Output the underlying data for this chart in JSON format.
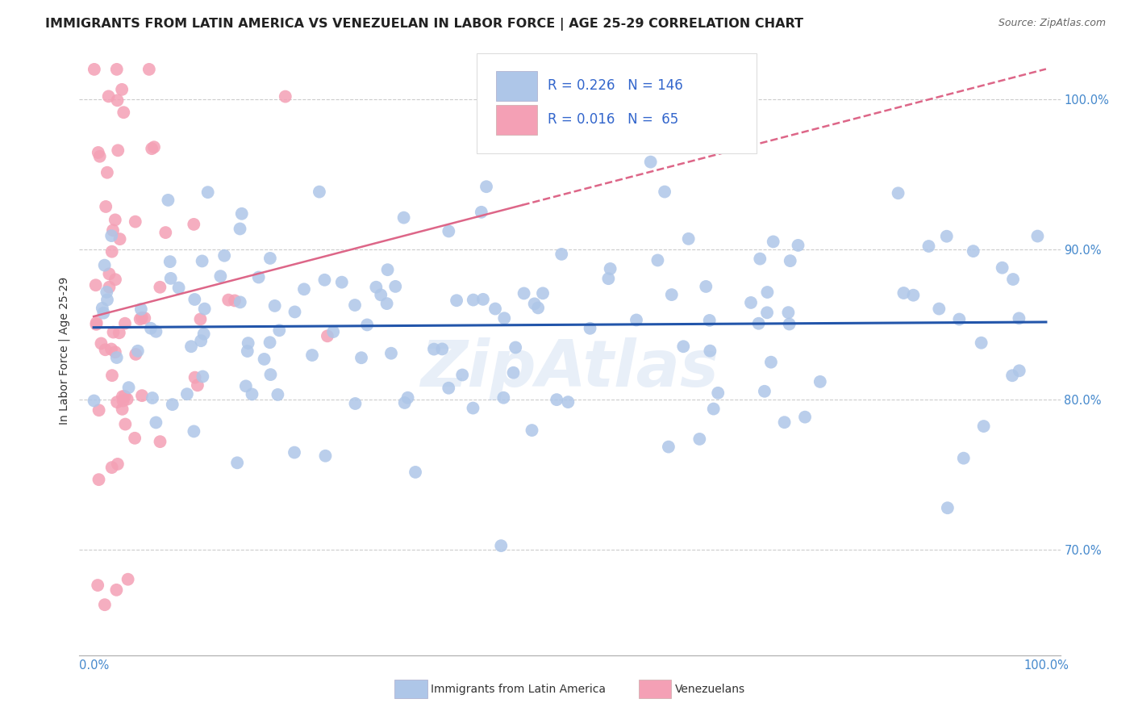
{
  "title": "IMMIGRANTS FROM LATIN AMERICA VS VENEZUELAN IN LABOR FORCE | AGE 25-29 CORRELATION CHART",
  "source": "Source: ZipAtlas.com",
  "ylabel": "In Labor Force | Age 25-29",
  "x_min": 0.0,
  "x_max": 1.0,
  "y_min": 0.63,
  "y_max": 1.035,
  "y_ticks": [
    0.7,
    0.8,
    0.9,
    1.0
  ],
  "y_tick_labels": [
    "70.0%",
    "80.0%",
    "90.0%",
    "100.0%"
  ],
  "x_tick_labels_show": [
    "0.0%",
    "100.0%"
  ],
  "blue_scatter_color": "#aec6e8",
  "pink_scatter_color": "#f4a0b5",
  "blue_line_color": "#2255aa",
  "pink_line_color": "#dd6688",
  "watermark": "ZipAtlas",
  "blue_R": 0.226,
  "blue_N": 146,
  "pink_R": 0.016,
  "pink_N": 65,
  "background_color": "#ffffff",
  "grid_color": "#cccccc",
  "title_fontsize": 11.5,
  "source_fontsize": 9,
  "axis_label_color": "#4488cc",
  "legend_text_color": "#3366cc"
}
